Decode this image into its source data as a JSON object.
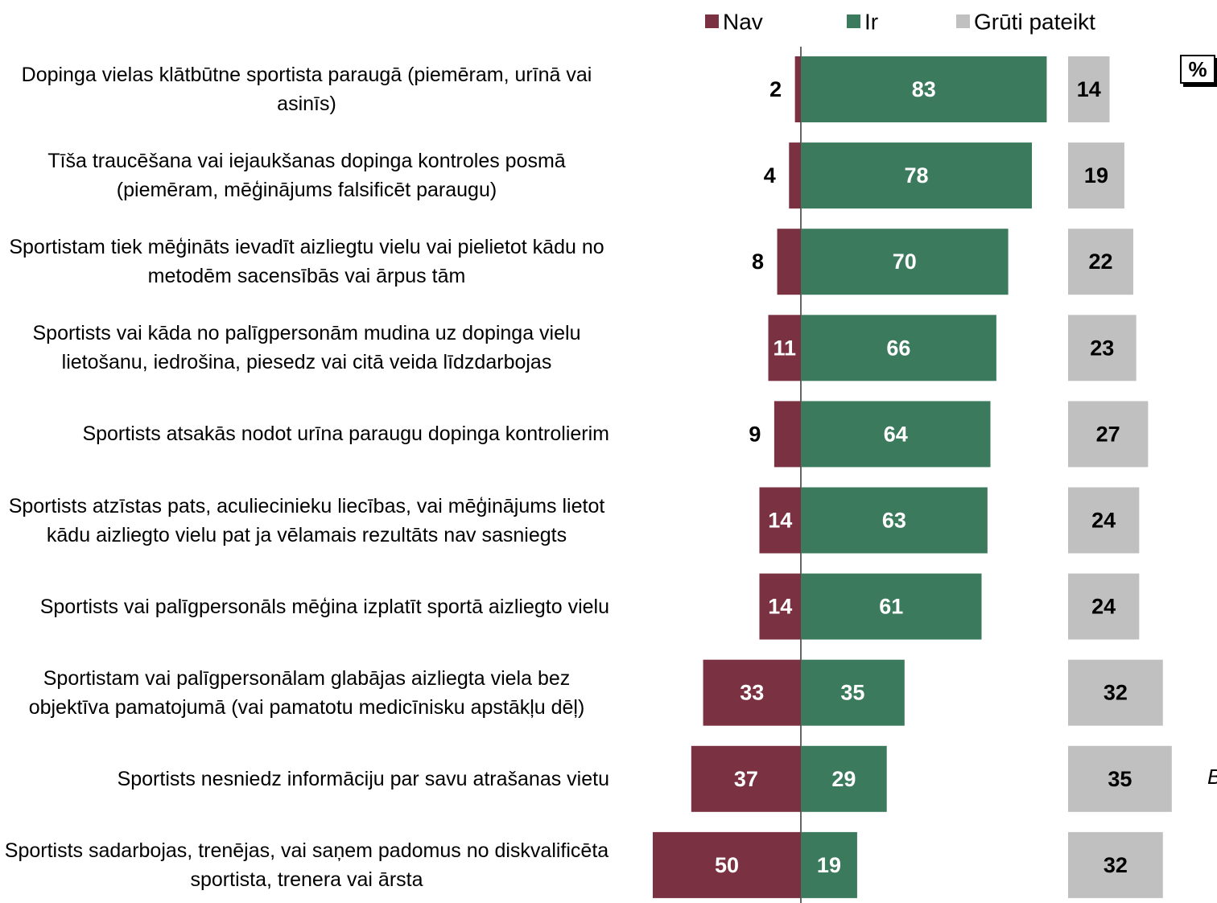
{
  "chart_data": {
    "type": "diverging_bar",
    "categories": [
      "Dopinga vielas klātbūtne sportista paraugā (piemēram, urīnā vai asinīs)",
      "Tīša traucēšana vai iejaukšanas dopinga kontroles posmā (piemēram, mēģinājums falsificēt paraugu)",
      "Sportistam tiek mēģināts ievadīt aizliegtu vielu vai pielietot kādu no metodēm sacensībās vai ārpus tām",
      "Sportists vai kāda no palīgpersonām mudina uz dopinga vielu lietošanu, iedrošina, piesedz vai citā veida līdzdarbojas",
      "Sportists atsakās nodot urīna paraugu dopinga kontrolierim",
      "Sportists atzīstas pats, aculiecinieku liecības, vai mēģinājums lietot kādu aizliegto vielu pat ja vēlamais rezultāts nav sasniegts",
      "Sportists vai palīgpersonāls mēģina izplatīt sportā aizliegto vielu",
      "Sportistam vai palīgpersonālam glabājas aizliegta viela bez objektīva pamatojumā (vai pamatotu medicīnisku apstākļu dēļ)",
      "Sportists nesniedz informāciju par savu atrašanas vietu",
      "Sportists sadarbojas, trenējas, vai saņem padomus no diskvalificēta sportista, trenera vai ārsta"
    ],
    "series": [
      {
        "name": "Nav",
        "color": "#7a3141",
        "values": [
          2,
          4,
          8,
          11,
          9,
          14,
          14,
          33,
          37,
          50
        ]
      },
      {
        "name": "Ir",
        "color": "#3b7a5d",
        "values": [
          83,
          78,
          70,
          66,
          64,
          63,
          61,
          35,
          29,
          19
        ]
      },
      {
        "name": "Grūti pateikt",
        "color": "#c0c0c0",
        "values": [
          14,
          19,
          22,
          23,
          27,
          24,
          24,
          32,
          35,
          32
        ]
      }
    ],
    "unit_label": "%",
    "annotation": "B"
  }
}
